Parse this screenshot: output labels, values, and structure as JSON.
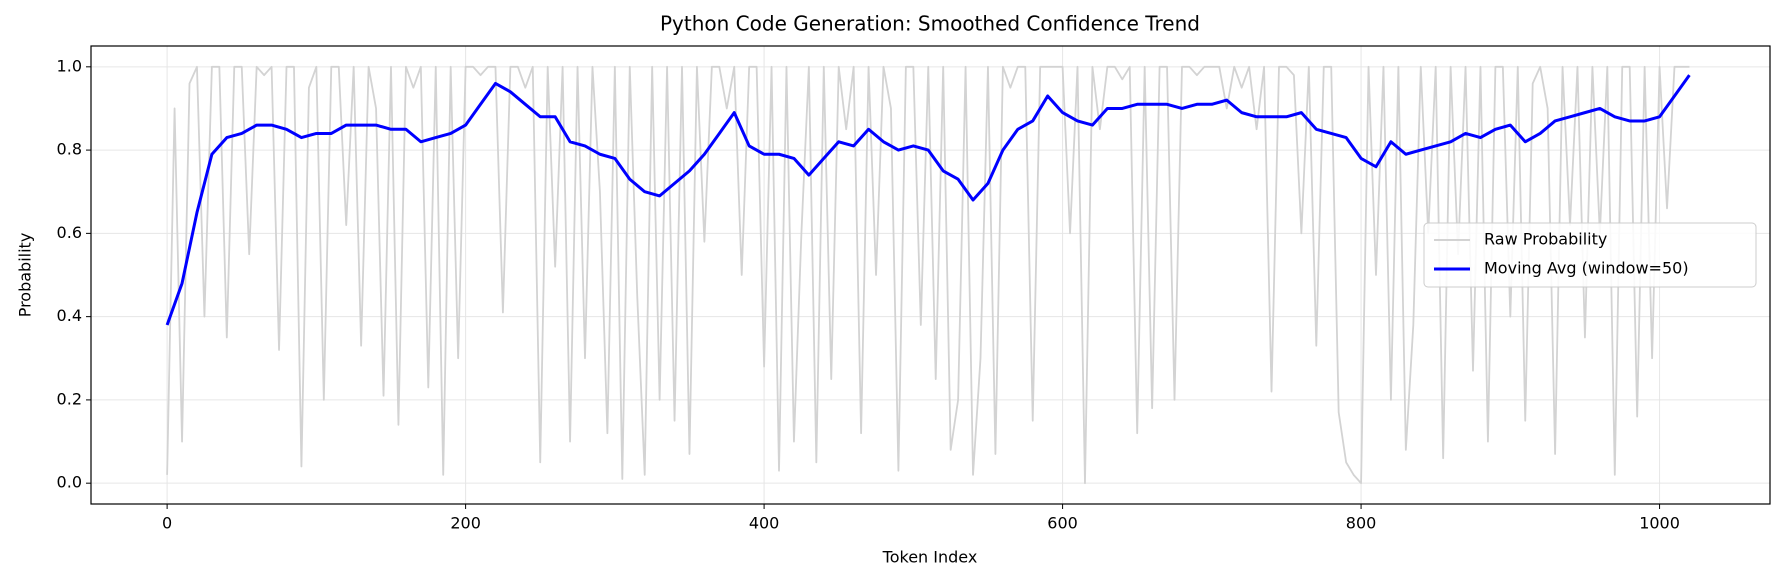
{
  "chart_data": {
    "type": "line",
    "title": "Python Code Generation: Smoothed Confidence Trend",
    "x_label": "Token Index",
    "y_label": "Probability",
    "xlim": [
      -51,
      1074
    ],
    "ylim": [
      -0.05,
      1.05
    ],
    "xticks": [
      0,
      200,
      400,
      600,
      800,
      1000
    ],
    "yticks": [
      {
        "value": 0,
        "label": "0.0"
      },
      0.2,
      0.4,
      0.6,
      0.8,
      {
        "value": 1,
        "label": "1.0"
      }
    ],
    "grid": true,
    "legend": "center right",
    "series": [
      {
        "name": "Raw Probability",
        "color": "#d3d3d3",
        "x": [
          0,
          5,
          10,
          15,
          20,
          25,
          30,
          35,
          40,
          45,
          50,
          55,
          60,
          65,
          70,
          75,
          80,
          85,
          90,
          95,
          100,
          105,
          110,
          115,
          120,
          125,
          130,
          135,
          140,
          145,
          150,
          155,
          160,
          165,
          170,
          175,
          180,
          185,
          190,
          195,
          200,
          205,
          210,
          215,
          220,
          225,
          230,
          235,
          240,
          245,
          250,
          255,
          260,
          265,
          270,
          275,
          280,
          285,
          290,
          295,
          300,
          305,
          310,
          315,
          320,
          325,
          330,
          335,
          340,
          345,
          350,
          355,
          360,
          365,
          370,
          375,
          380,
          385,
          390,
          395,
          400,
          405,
          410,
          415,
          420,
          425,
          430,
          435,
          440,
          445,
          450,
          455,
          460,
          465,
          470,
          475,
          480,
          485,
          490,
          495,
          500,
          505,
          510,
          515,
          520,
          525,
          530,
          535,
          540,
          545,
          550,
          555,
          560,
          565,
          570,
          575,
          580,
          585,
          590,
          595,
          600,
          605,
          610,
          615,
          620,
          625,
          630,
          635,
          640,
          645,
          650,
          655,
          660,
          665,
          670,
          675,
          680,
          685,
          690,
          695,
          700,
          705,
          710,
          715,
          720,
          725,
          730,
          735,
          740,
          745,
          750,
          755,
          760,
          765,
          770,
          775,
          780,
          785,
          790,
          795,
          800,
          805,
          810,
          815,
          820,
          825,
          830,
          835,
          840,
          845,
          850,
          855,
          860,
          865,
          870,
          875,
          880,
          885,
          890,
          895,
          900,
          905,
          910,
          915,
          920,
          925,
          930,
          935,
          940,
          945,
          950,
          955,
          960,
          965,
          970,
          975,
          980,
          985,
          990,
          995,
          1000,
          1005,
          1010,
          1015,
          1020
        ],
        "values": [
          0.02,
          0.9,
          0.1,
          0.96,
          1,
          0.4,
          1,
          1,
          0.35,
          1,
          1,
          0.55,
          1,
          0.98,
          1,
          0.32,
          1,
          1,
          0.04,
          0.95,
          1,
          0.2,
          1,
          1,
          0.62,
          1,
          0.33,
          1,
          0.9,
          0.21,
          1,
          0.14,
          1,
          0.95,
          1,
          0.23,
          1,
          0.02,
          1,
          0.3,
          1,
          1,
          0.98,
          1,
          1,
          0.41,
          1,
          1,
          0.95,
          1,
          0.05,
          1,
          0.52,
          1,
          0.1,
          1,
          0.3,
          1,
          0.7,
          0.12,
          1,
          0.01,
          1,
          0.45,
          0.02,
          1,
          0.2,
          1,
          0.15,
          1,
          0.07,
          1,
          0.58,
          1,
          1,
          0.9,
          1,
          0.5,
          1,
          1,
          0.28,
          1,
          0.03,
          1,
          0.1,
          0.6,
          1,
          0.05,
          1,
          0.25,
          1,
          0.85,
          1,
          0.12,
          1,
          0.5,
          1,
          0.9,
          0.03,
          1,
          1,
          0.38,
          1,
          0.25,
          1,
          0.08,
          0.2,
          1,
          0.02,
          0.3,
          1,
          0.07,
          1,
          0.95,
          1,
          1,
          0.15,
          1,
          1,
          1,
          1,
          0.6,
          1,
          0,
          1,
          0.85,
          1,
          1,
          0.97,
          1,
          0.12,
          1,
          0.18,
          1,
          1,
          0.2,
          1,
          1,
          0.98,
          1,
          1,
          1,
          0.9,
          1,
          0.95,
          1,
          0.85,
          1,
          0.22,
          1,
          1,
          0.98,
          0.6,
          1,
          0.33,
          1,
          1,
          0.17,
          0.05,
          0.02,
          0,
          1,
          0.5,
          1,
          0.2,
          1,
          0.08,
          0.38,
          1,
          0.6,
          1,
          0.06,
          1,
          0.55,
          1,
          0.27,
          1,
          0.1,
          1,
          1,
          0.4,
          1,
          0.15,
          0.96,
          1,
          0.9,
          0.07,
          1,
          0.62,
          1,
          0.35,
          1,
          0.6,
          1,
          0.02,
          1,
          1,
          0.16,
          1,
          0.3,
          1,
          0.66,
          1,
          1,
          1
        ]
      },
      {
        "name": "Moving Avg (window=50)",
        "color": "#0000ff",
        "x": [
          0,
          10,
          20,
          30,
          40,
          50,
          60,
          70,
          80,
          90,
          100,
          110,
          120,
          130,
          140,
          150,
          160,
          170,
          180,
          190,
          200,
          210,
          220,
          230,
          240,
          250,
          260,
          270,
          280,
          290,
          300,
          310,
          320,
          330,
          340,
          350,
          360,
          370,
          380,
          390,
          400,
          410,
          420,
          430,
          440,
          450,
          460,
          470,
          480,
          490,
          500,
          510,
          520,
          530,
          540,
          550,
          560,
          570,
          580,
          590,
          600,
          610,
          620,
          630,
          640,
          650,
          660,
          670,
          680,
          690,
          700,
          710,
          720,
          730,
          740,
          750,
          760,
          770,
          780,
          790,
          800,
          810,
          820,
          830,
          840,
          850,
          860,
          870,
          880,
          890,
          900,
          910,
          920,
          930,
          940,
          950,
          960,
          970,
          980,
          990,
          1000,
          1010,
          1020
        ],
        "values": [
          0.38,
          0.48,
          0.65,
          0.79,
          0.83,
          0.84,
          0.86,
          0.86,
          0.85,
          0.83,
          0.84,
          0.84,
          0.86,
          0.86,
          0.86,
          0.85,
          0.85,
          0.82,
          0.83,
          0.84,
          0.86,
          0.91,
          0.96,
          0.94,
          0.91,
          0.88,
          0.88,
          0.82,
          0.81,
          0.79,
          0.78,
          0.73,
          0.7,
          0.69,
          0.72,
          0.75,
          0.79,
          0.84,
          0.89,
          0.81,
          0.79,
          0.79,
          0.78,
          0.74,
          0.78,
          0.82,
          0.81,
          0.85,
          0.82,
          0.8,
          0.81,
          0.8,
          0.75,
          0.73,
          0.68,
          0.72,
          0.8,
          0.85,
          0.87,
          0.93,
          0.89,
          0.87,
          0.86,
          0.9,
          0.9,
          0.91,
          0.91,
          0.91,
          0.9,
          0.91,
          0.91,
          0.92,
          0.89,
          0.88,
          0.88,
          0.88,
          0.89,
          0.85,
          0.84,
          0.83,
          0.78,
          0.76,
          0.82,
          0.79,
          0.8,
          0.81,
          0.82,
          0.84,
          0.83,
          0.85,
          0.86,
          0.82,
          0.84,
          0.87,
          0.88,
          0.89,
          0.9,
          0.88,
          0.87,
          0.87,
          0.88,
          0.93,
          0.98
        ]
      }
    ]
  }
}
